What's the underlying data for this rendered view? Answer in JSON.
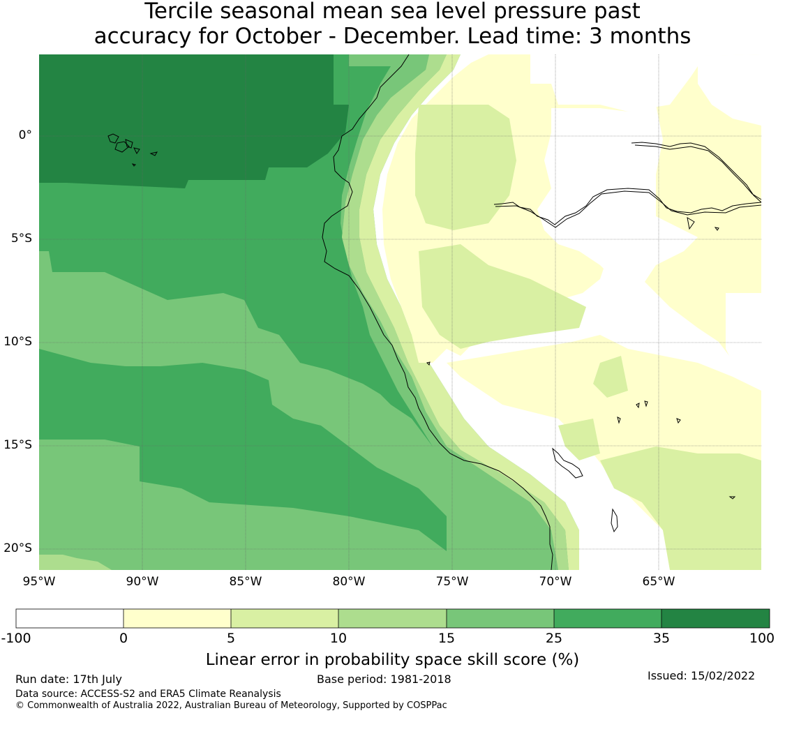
{
  "title_line1": "Tercile seasonal mean sea level pressure past",
  "title_line2": "accuracy for October - December. Lead time: 3 months",
  "map": {
    "lon_range": [
      -95,
      -60
    ],
    "lat_range": [
      -21,
      4
    ],
    "lon_ticks": [
      "95°W",
      "90°W",
      "85°W",
      "80°W",
      "75°W",
      "70°W",
      "65°W"
    ],
    "lat_ticks": [
      "0°",
      "5°S",
      "10°S",
      "15°S",
      "20°S"
    ]
  },
  "colorbar": {
    "label": "Linear error in probability space skill score (%)",
    "ticks": [
      "-100",
      "0",
      "5",
      "10",
      "15",
      "25",
      "35",
      "100"
    ],
    "colors": [
      "#ffffff",
      "#ffffcc",
      "#d9f0a3",
      "#addd8e",
      "#78c679",
      "#41ab5d",
      "#238443"
    ]
  },
  "footer": {
    "run_date": "Run date: 17th July",
    "base_period": "Base period: 1981-2018",
    "issued": "Issued: 15/02/2022",
    "data_source": "Data source: ACCESS-S2 and ERA5 Climate Reanalysis",
    "copyright": "© Commonwealth of Australia 2022, Australian Bureau of Meteorology, Supported by COSPPac"
  }
}
